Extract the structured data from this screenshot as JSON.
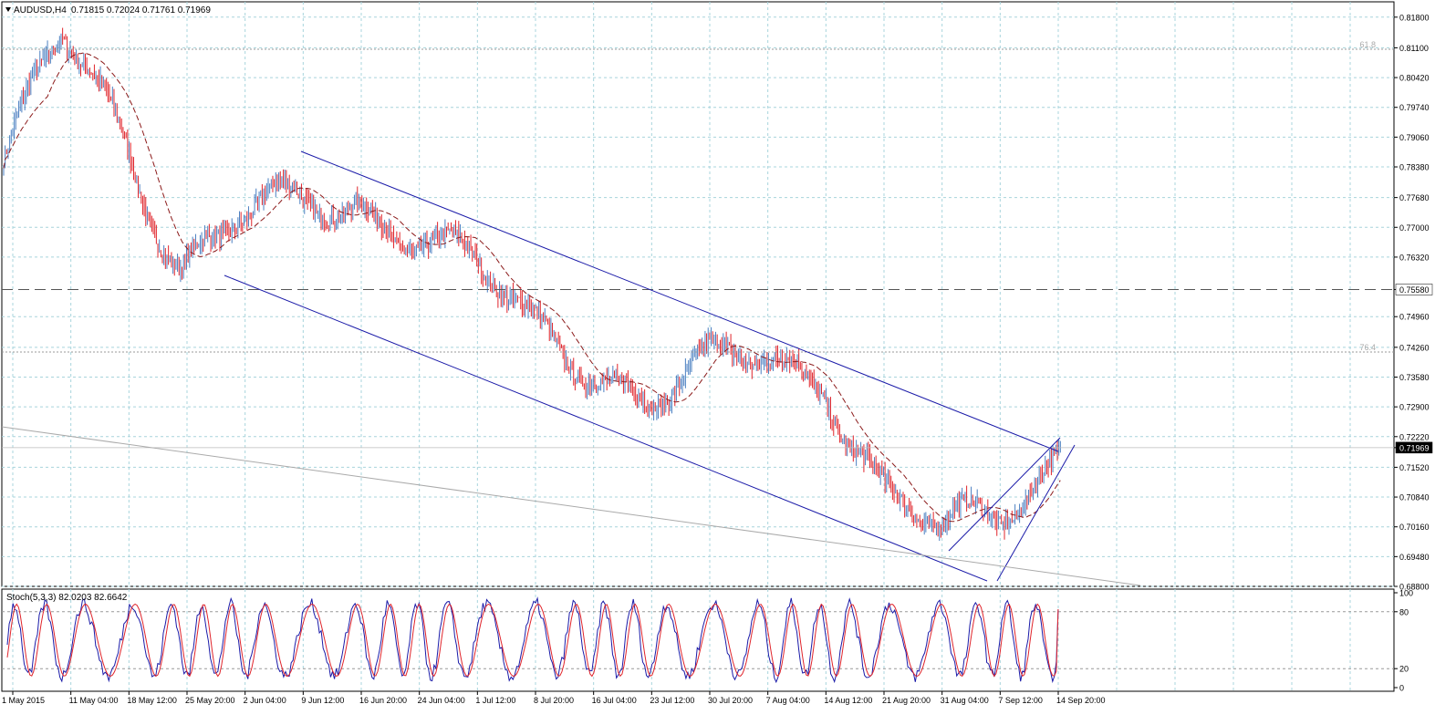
{
  "header": {
    "symbol": "AUDUSD,H4",
    "ohlc": "0.71815 0.72024 0.71761 0.71969"
  },
  "stoch_header": "Stoch(5,3,3) 82.0203 82.6642",
  "price_axis": {
    "ticks": [
      "0.81800",
      "0.81100",
      "0.80420",
      "0.79740",
      "0.79060",
      "0.78380",
      "0.77680",
      "0.77000",
      "0.76320",
      "0.75580",
      "0.74960",
      "0.74260",
      "0.73580",
      "0.72900",
      "0.72220",
      "0.71969",
      "0.71520",
      "0.70840",
      "0.70160",
      "0.69480",
      "0.68800"
    ],
    "current_price": "0.71969",
    "level_price": "0.75580"
  },
  "stoch_axis": {
    "ticks": [
      "100",
      "80",
      "20",
      "0"
    ]
  },
  "time_axis": {
    "labels": [
      "1 May 2015",
      "11 May 04:00",
      "18 May 12:00",
      "25 May 20:00",
      "2 Jun 04:00",
      "9 Jun 12:00",
      "16 Jun 20:00",
      "24 Jun 04:00",
      "1 Jul 12:00",
      "8 Jul 20:00",
      "16 Jul 04:00",
      "23 Jul 12:00",
      "30 Jul 20:00",
      "7 Aug 04:00",
      "14 Aug 12:00",
      "21 Aug 20:00",
      "31 Aug 04:00",
      "7 Sep 12:00",
      "14 Sep 20:00"
    ]
  },
  "fib_labels": {
    "upper": "61.8",
    "lower": "76.4"
  },
  "colors": {
    "bull": "#4a7fc1",
    "bear": "#e0242b",
    "ma": "#8b1a1a",
    "channel": "#1a1aa8",
    "grid": "#a8d4dc",
    "stoch_main": "#1a1aa8",
    "stoch_signal": "#e0242b"
  },
  "chart_data": {
    "type": "line",
    "title": "AUDUSD,H4",
    "ylim": [
      0.688,
      0.8215
    ],
    "x": [
      "1 May 2015",
      "11 May 04:00",
      "18 May 12:00",
      "25 May 20:00",
      "2 Jun 04:00",
      "9 Jun 12:00",
      "16 Jun 20:00",
      "24 Jun 04:00",
      "1 Jul 12:00",
      "8 Jul 20:00",
      "16 Jul 04:00",
      "23 Jul 12:00",
      "30 Jul 20:00",
      "7 Aug 04:00",
      "14 Aug 12:00",
      "21 Aug 20:00",
      "31 Aug 04:00",
      "7 Sep 12:00",
      "14 Sep 20:00"
    ],
    "series": [
      {
        "values": [
          0.785,
          0.812,
          0.792,
          0.763,
          0.772,
          0.773,
          0.776,
          0.771,
          0.76,
          0.746,
          0.741,
          0.731,
          0.736,
          0.741,
          0.737,
          0.708,
          0.698,
          0.707,
          0.72
        ]
      }
    ],
    "stochastic": {
      "ylim": [
        0,
        100
      ],
      "main": 82.0203,
      "signal": 82.6642,
      "levels": [
        20,
        80
      ]
    }
  }
}
